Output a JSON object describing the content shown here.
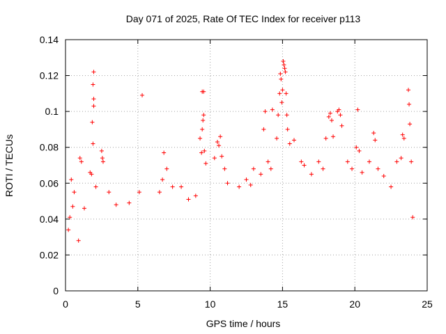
{
  "chart_data": {
    "type": "scatter",
    "title": "Day 071 of 2025, Rate Of TEC Index for receiver p113",
    "xlabel": "GPS time / hours",
    "ylabel": "ROTI / TECUs",
    "xlim": [
      0,
      25
    ],
    "ylim": [
      0,
      0.14
    ],
    "x_ticks": [
      "0",
      "5",
      "10",
      "15",
      "20",
      "25"
    ],
    "y_ticks": [
      "0",
      "0.02",
      "0.04",
      "0.06",
      "0.08",
      "0.1",
      "0.12",
      "0.14"
    ],
    "grid": true,
    "legend": "none",
    "marker": "plus",
    "color": "#ff0000",
    "series": [
      {
        "values": [
          [
            0.2,
            0.034
          ],
          [
            0.3,
            0.041
          ],
          [
            0.4,
            0.062
          ],
          [
            0.5,
            0.047
          ],
          [
            0.6,
            0.055
          ],
          [
            0.9,
            0.028
          ],
          [
            1.0,
            0.074
          ],
          [
            1.1,
            0.072
          ],
          [
            1.3,
            0.046
          ],
          [
            1.7,
            0.066
          ],
          [
            1.8,
            0.065
          ],
          [
            1.85,
            0.094
          ],
          [
            1.9,
            0.082
          ],
          [
            1.95,
            0.107
          ],
          [
            1.95,
            0.103
          ],
          [
            1.9,
            0.115
          ],
          [
            1.95,
            0.122
          ],
          [
            2.1,
            0.058
          ],
          [
            2.5,
            0.078
          ],
          [
            2.55,
            0.074
          ],
          [
            2.6,
            0.072
          ],
          [
            3.0,
            0.055
          ],
          [
            3.5,
            0.048
          ],
          [
            4.4,
            0.049
          ],
          [
            5.1,
            0.055
          ],
          [
            5.3,
            0.109
          ],
          [
            6.5,
            0.055
          ],
          [
            6.7,
            0.062
          ],
          [
            6.8,
            0.077
          ],
          [
            7.0,
            0.068
          ],
          [
            7.4,
            0.058
          ],
          [
            8.0,
            0.058
          ],
          [
            8.5,
            0.051
          ],
          [
            9.0,
            0.053
          ],
          [
            9.3,
            0.085
          ],
          [
            9.4,
            0.077
          ],
          [
            9.45,
            0.09
          ],
          [
            9.5,
            0.095
          ],
          [
            9.55,
            0.098
          ],
          [
            9.45,
            0.111
          ],
          [
            9.55,
            0.111
          ],
          [
            9.6,
            0.078
          ],
          [
            9.7,
            0.071
          ],
          [
            10.3,
            0.074
          ],
          [
            10.5,
            0.083
          ],
          [
            10.6,
            0.081
          ],
          [
            10.7,
            0.086
          ],
          [
            10.8,
            0.075
          ],
          [
            11.0,
            0.068
          ],
          [
            11.2,
            0.06
          ],
          [
            12.0,
            0.058
          ],
          [
            12.5,
            0.062
          ],
          [
            12.8,
            0.059
          ],
          [
            13.0,
            0.068
          ],
          [
            13.5,
            0.065
          ],
          [
            13.7,
            0.09
          ],
          [
            13.8,
            0.1
          ],
          [
            14.0,
            0.072
          ],
          [
            14.2,
            0.068
          ],
          [
            14.3,
            0.101
          ],
          [
            14.6,
            0.085
          ],
          [
            14.7,
            0.098
          ],
          [
            14.8,
            0.11
          ],
          [
            14.85,
            0.121
          ],
          [
            14.9,
            0.118
          ],
          [
            14.95,
            0.105
          ],
          [
            15.0,
            0.112
          ],
          [
            15.05,
            0.128
          ],
          [
            15.1,
            0.126
          ],
          [
            15.15,
            0.124
          ],
          [
            15.2,
            0.122
          ],
          [
            15.25,
            0.11
          ],
          [
            15.3,
            0.098
          ],
          [
            15.35,
            0.09
          ],
          [
            15.5,
            0.082
          ],
          [
            15.8,
            0.084
          ],
          [
            16.3,
            0.072
          ],
          [
            16.5,
            0.07
          ],
          [
            17.0,
            0.065
          ],
          [
            17.5,
            0.072
          ],
          [
            17.8,
            0.068
          ],
          [
            18.0,
            0.085
          ],
          [
            18.2,
            0.097
          ],
          [
            18.3,
            0.099
          ],
          [
            18.4,
            0.095
          ],
          [
            18.5,
            0.086
          ],
          [
            18.8,
            0.1
          ],
          [
            18.9,
            0.101
          ],
          [
            19.0,
            0.098
          ],
          [
            19.1,
            0.092
          ],
          [
            19.5,
            0.072
          ],
          [
            19.8,
            0.068
          ],
          [
            20.1,
            0.08
          ],
          [
            20.2,
            0.101
          ],
          [
            20.3,
            0.078
          ],
          [
            20.5,
            0.066
          ],
          [
            21.0,
            0.072
          ],
          [
            21.3,
            0.088
          ],
          [
            21.4,
            0.084
          ],
          [
            21.6,
            0.068
          ],
          [
            22.0,
            0.064
          ],
          [
            22.5,
            0.058
          ],
          [
            22.9,
            0.072
          ],
          [
            23.2,
            0.074
          ],
          [
            23.3,
            0.087
          ],
          [
            23.4,
            0.085
          ],
          [
            23.7,
            0.112
          ],
          [
            23.75,
            0.104
          ],
          [
            23.8,
            0.093
          ],
          [
            23.9,
            0.072
          ],
          [
            24.0,
            0.041
          ]
        ]
      }
    ]
  }
}
